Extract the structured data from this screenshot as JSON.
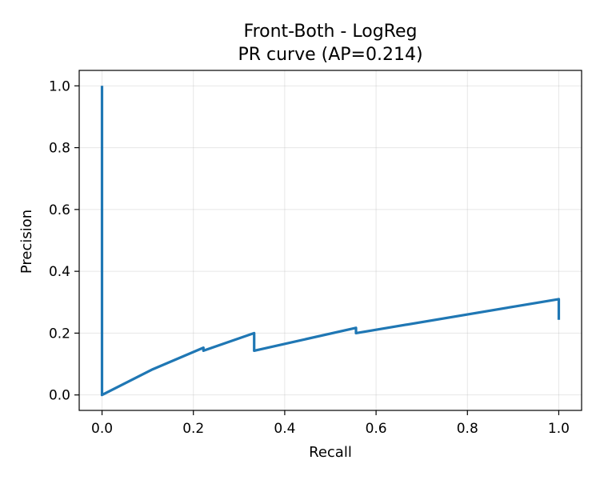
{
  "chart_data": {
    "type": "line",
    "title": "Front-Both - LogReg",
    "subtitle": "PR curve (AP=0.214)",
    "xlabel": "Recall",
    "ylabel": "Precision",
    "xlim": [
      -0.05,
      1.05
    ],
    "ylim": [
      -0.05,
      1.05
    ],
    "xticks": [
      "0.0",
      "0.2",
      "0.4",
      "0.6",
      "0.8",
      "1.0"
    ],
    "yticks": [
      "0.0",
      "0.2",
      "0.4",
      "0.6",
      "0.8",
      "1.0"
    ],
    "grid": true,
    "series": [
      {
        "color": "#1f77b4",
        "x": [
          0.0,
          0.0,
          0.0,
          0.111,
          0.222,
          0.222,
          0.333,
          0.333,
          0.556,
          0.556,
          1.0,
          1.0
        ],
        "y": [
          1.0,
          0.0,
          0.0,
          0.083,
          0.153,
          0.143,
          0.2,
          0.143,
          0.217,
          0.2,
          0.31,
          0.243
        ]
      }
    ]
  }
}
